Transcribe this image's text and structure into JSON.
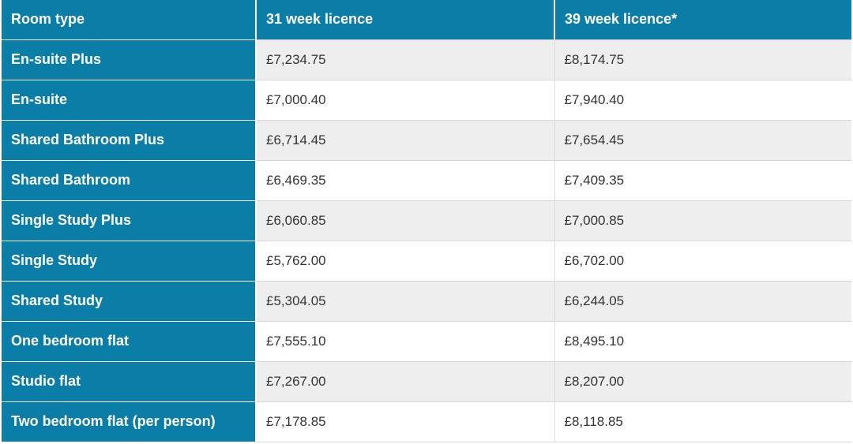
{
  "table": {
    "headers": [
      "Room type",
      "31 week licence",
      "39 week licence*"
    ],
    "rows": [
      {
        "room_type": "En-suite Plus",
        "week31": "£7,234.75",
        "week39": "£8,174.75"
      },
      {
        "room_type": "En-suite",
        "week31": "£7,000.40",
        "week39": "£7,940.40"
      },
      {
        "room_type": "Shared Bathroom Plus",
        "week31": "£6,714.45",
        "week39": "£7,654.45"
      },
      {
        "room_type": "Shared Bathroom",
        "week31": "£6,469.35",
        "week39": "£7,409.35"
      },
      {
        "room_type": "Single Study Plus",
        "week31": "£6,060.85",
        "week39": "£7,000.85"
      },
      {
        "room_type": "Single Study",
        "week31": "£5,762.00",
        "week39": "£6,702.00"
      },
      {
        "room_type": "Shared Study",
        "week31": "£5,304.05",
        "week39": "£6,244.05"
      },
      {
        "room_type": "One bedroom flat",
        "week31": "£7,555.10",
        "week39": "£8,495.10"
      },
      {
        "room_type": "Studio flat",
        "week31": "£7,267.00",
        "week39": "£8,207.00"
      },
      {
        "room_type": "Two bedroom flat (per person)",
        "week31": "£7,178.85",
        "week39": "£8,118.85"
      }
    ]
  },
  "colors": {
    "header_bg": "#0b7ea8",
    "header_text": "#ffffff",
    "row_shade": "#eeeeee",
    "row_plain": "#ffffff",
    "price_text": "#333333"
  }
}
